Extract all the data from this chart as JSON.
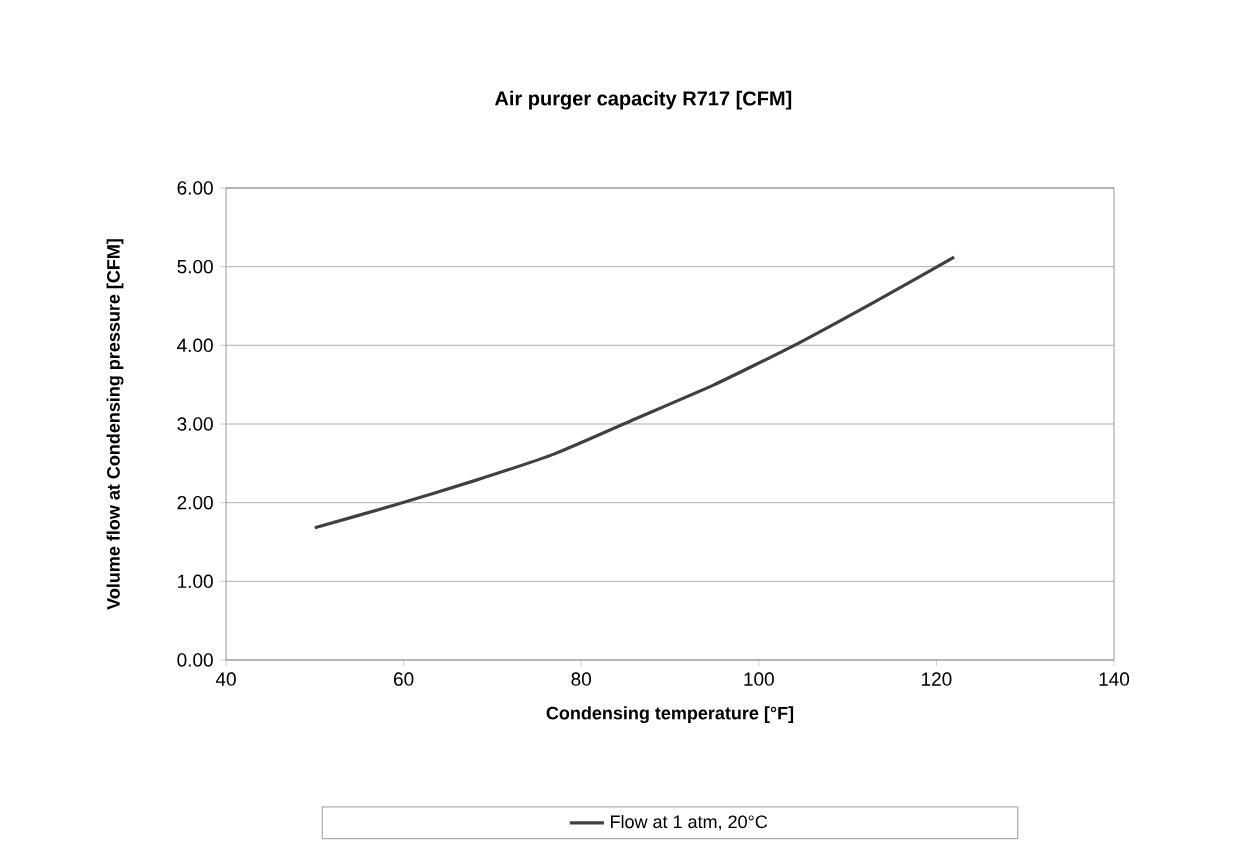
{
  "chart_data": {
    "type": "line",
    "title": "Air purger capacity R717 [CFM]",
    "xlabel": "Condensing temperature [°F]",
    "ylabel": "Volume flow at Condensing pressure [CFM]",
    "x": [
      50,
      59,
      68,
      77,
      86,
      95,
      104,
      113,
      122
    ],
    "series": [
      {
        "name": "Flow at 1 atm, 20°C",
        "color": "#404040",
        "values": [
          1.68,
          1.97,
          2.28,
          2.62,
          3.06,
          3.5,
          4.0,
          4.55,
          5.12
        ]
      }
    ],
    "xlim": [
      40,
      140
    ],
    "xticks": [
      40,
      60,
      80,
      100,
      120,
      140
    ],
    "ylim": [
      0,
      6
    ],
    "yticks": [
      {
        "value": 0,
        "label": "0.00"
      },
      {
        "value": 1,
        "label": "1.00"
      },
      {
        "value": 2,
        "label": "2.00"
      },
      {
        "value": 3,
        "label": "3.00"
      },
      {
        "value": 4,
        "label": "4.00"
      },
      {
        "value": 5,
        "label": "5.00"
      },
      {
        "value": 6,
        "label": "6.00"
      }
    ],
    "grid": "y",
    "legend": "bottom",
    "marker": "none",
    "line_style": "solid"
  }
}
